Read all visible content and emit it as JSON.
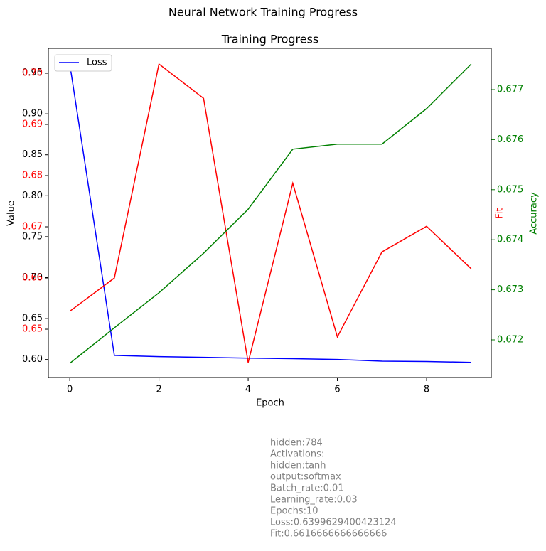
{
  "chart_data": {
    "type": "line",
    "suptitle": "Neural Network Training Progress",
    "title": "Training Progress",
    "xlabel": "Epoch",
    "ylabel": "Value",
    "y2label": "Fit",
    "y3label": "Accuracy",
    "x": [
      0,
      1,
      2,
      3,
      4,
      5,
      6,
      7,
      8,
      9
    ],
    "xlim": [
      -0.48,
      9.45
    ],
    "xticks": [
      0,
      2,
      4,
      6,
      8
    ],
    "ylim": [
      0.578,
      0.98
    ],
    "yticks": [
      {
        "value": 0.6,
        "label": "0.60"
      },
      0.65,
      {
        "value": 0.7,
        "label": "0.70"
      },
      0.75,
      {
        "value": 0.8,
        "label": "0.80"
      },
      0.85,
      {
        "value": 0.9,
        "label": "0.90"
      },
      0.95
    ],
    "y2lim": [
      0.64056,
      0.70486
    ],
    "y2ticks": [
      0.65,
      0.66,
      0.67,
      0.68,
      0.69,
      {
        "value": 0.7,
        "label": "0.70"
      }
    ],
    "y3lim": [
      0.671247,
      0.677824
    ],
    "y3ticks": [
      0.672,
      0.673,
      0.674,
      0.675,
      0.676,
      0.677
    ],
    "legend": "upper left",
    "series": [
      {
        "name": "Loss",
        "color": "#0000ff",
        "axis": "y",
        "in_legend": true,
        "values": [
          0.961,
          0.605,
          0.6035,
          0.6026,
          0.6017,
          0.601,
          0.6,
          0.598,
          0.5975,
          0.5965
        ]
      },
      {
        "color": "#ff0000",
        "axis": "y2",
        "in_legend": false,
        "values": [
          0.6535,
          0.66,
          0.7018,
          0.6951,
          0.6435,
          0.6785,
          0.6485,
          0.6651,
          0.6701,
          0.6618
        ]
      },
      {
        "color": "#008000",
        "axis": "y3",
        "in_legend": false,
        "values": [
          0.67153,
          0.67224,
          0.67294,
          0.67373,
          0.67461,
          0.67581,
          0.67591,
          0.67591,
          0.67662,
          0.67751
        ]
      }
    ],
    "annotation": [
      "hidden:784",
      "Activations:",
      "hidden:tanh",
      "output:softmax",
      "Batch_rate:0.01",
      "Learning_rate:0.03",
      "Epochs:10",
      "Loss:0.6399629400423124",
      "Fit:0.6616666666666666"
    ]
  }
}
